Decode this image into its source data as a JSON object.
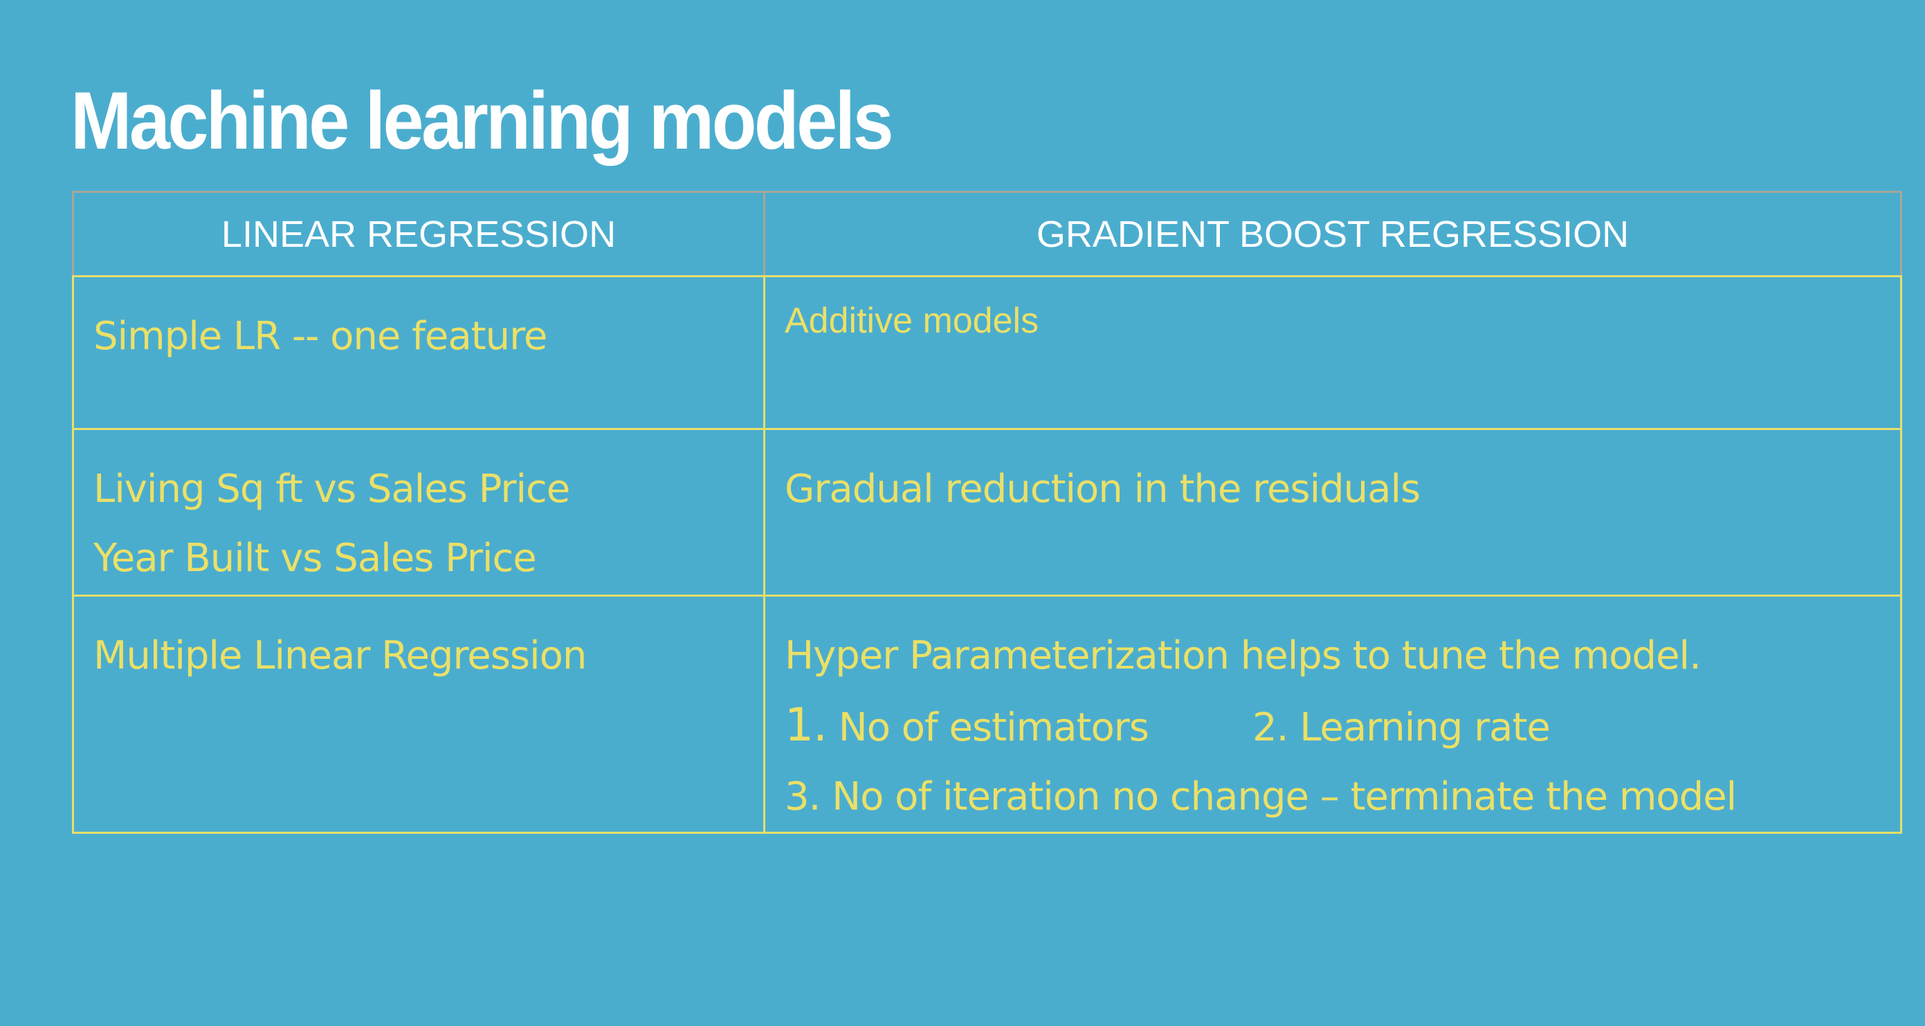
{
  "slide": {
    "title": "Machine learning models"
  },
  "table": {
    "headers": [
      "LINEAR REGRESSION",
      "GRADIENT BOOST REGRESSION"
    ],
    "rows": [
      {
        "left": [
          "Simple LR -- one feature"
        ],
        "right": [
          "Additive models"
        ]
      },
      {
        "left": [
          "Living Sq ft vs Sales Price",
          "Year Built vs Sales Price"
        ],
        "right": [
          "Gradual reduction in the residuals"
        ]
      },
      {
        "left": [
          "Multiple Linear Regression"
        ],
        "right": [
          "Hyper Parameterization helps to tune the model.",
          "1.",
          "No of estimators",
          "2. Learning rate",
          "3. No of iteration no change – terminate the model"
        ]
      }
    ]
  }
}
